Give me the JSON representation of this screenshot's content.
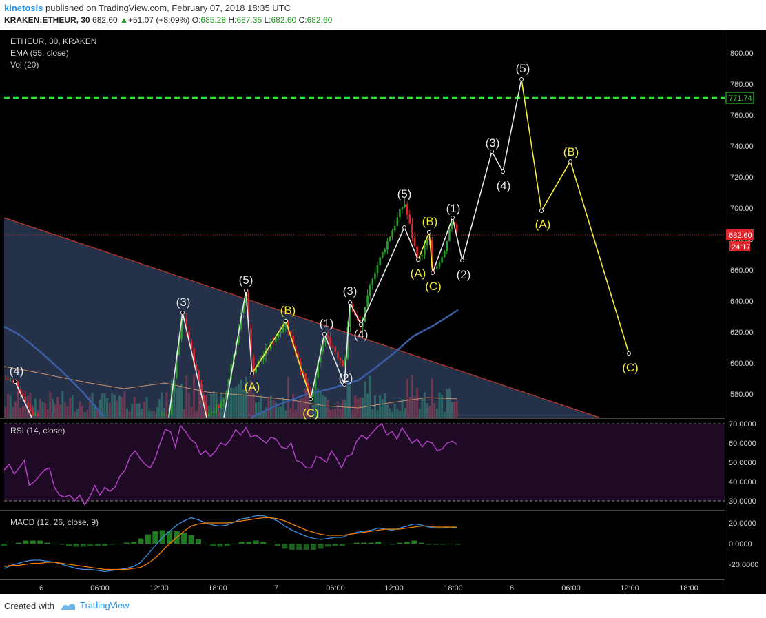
{
  "header": {
    "username": "kinetosis",
    "published": "published on TradingView.com, February 07, 2018 18:35 UTC",
    "symbol_line": "KRAKEN:ETHEUR, 30",
    "price": "682.60",
    "change": "+51.07 (+8.09%)",
    "o_label": "O:",
    "o_val": "685.28",
    "h_label": "H:",
    "h_val": "687.35",
    "l_label": "L:",
    "l_val": "682.60",
    "c_label": "C:",
    "c_val": "682.60",
    "up_color": "#1f9d1f"
  },
  "legend": {
    "title": "ETHEUR, 30, KRAKEN",
    "ema": "EMA (55, close)",
    "vol": "Vol (20)"
  },
  "price_axis": [
    "800.00",
    "780.00",
    "760.00",
    "740.00",
    "720.00",
    "700.00",
    "680.00",
    "660.00",
    "640.00",
    "620.00",
    "600.00",
    "580.00"
  ],
  "resistance_label": "771.74",
  "current_price_label": "682.60",
  "countdown_label": "24:17",
  "rsi": {
    "title": "RSI (14, close)",
    "axis": [
      "70.0000",
      "60.0000",
      "50.0000",
      "40.0000",
      "30.0000"
    ],
    "values": [
      46,
      49,
      44,
      47,
      51,
      38,
      40,
      43,
      46,
      47,
      37,
      33,
      32,
      33,
      30,
      33,
      28,
      32,
      38,
      33,
      37,
      35,
      37,
      43,
      46,
      53,
      56,
      52,
      49,
      47,
      52,
      60,
      67,
      66,
      58,
      69,
      66,
      62,
      60,
      54,
      56,
      53,
      56,
      60,
      59,
      62,
      67,
      64,
      68,
      63,
      64,
      62,
      60,
      63,
      62,
      58,
      57,
      60,
      51,
      50,
      47,
      47,
      53,
      52,
      50,
      56,
      52,
      47,
      53,
      54,
      61,
      64,
      62,
      65,
      68,
      70,
      64,
      66,
      62,
      68,
      64,
      60,
      62,
      58,
      61,
      60,
      56,
      57,
      60,
      61,
      59
    ]
  },
  "macd": {
    "title": "MACD (12, 26, close, 9)",
    "axis": [
      "20.0000",
      "0.0000",
      "-20.0000"
    ],
    "macd_line": [
      -24,
      -21,
      -19,
      -17,
      -16,
      -16,
      -17,
      -18,
      -20,
      -22,
      -24,
      -25,
      -25,
      -26,
      -27,
      -26,
      -25,
      -24,
      -22,
      -18,
      -10,
      -2,
      6,
      12,
      18,
      22,
      25,
      23,
      20,
      18,
      17,
      18,
      21,
      24,
      25,
      27,
      27,
      25,
      22,
      17,
      13,
      10,
      7,
      5,
      4,
      5,
      6,
      6,
      9,
      11,
      12,
      13,
      15,
      14,
      13,
      15,
      17,
      19,
      18,
      16,
      15,
      15,
      16,
      15
    ],
    "signal_line": [
      -22,
      -21,
      -21,
      -20,
      -19,
      -19,
      -18,
      -18,
      -19,
      -20,
      -21,
      -22,
      -23,
      -24,
      -25,
      -25,
      -25,
      -25,
      -24,
      -23,
      -19,
      -14,
      -7,
      0,
      6,
      12,
      17,
      19,
      20,
      20,
      20,
      20,
      21,
      22,
      23,
      24,
      25,
      25,
      24,
      22,
      19,
      16,
      13,
      11,
      9,
      8,
      8,
      8,
      9,
      10,
      11,
      12,
      13,
      14,
      14,
      14,
      15,
      16,
      17,
      17,
      16,
      16,
      16,
      16
    ],
    "histogram": [
      -2,
      0,
      1,
      3,
      3,
      3,
      1,
      0,
      -1,
      -2,
      -3,
      -3,
      -2,
      -2,
      -2,
      -1,
      0,
      1,
      2,
      5,
      9,
      12,
      13,
      12,
      12,
      10,
      8,
      4,
      0,
      -2,
      -3,
      -2,
      0,
      2,
      2,
      3,
      2,
      0,
      -2,
      -5,
      -6,
      -6,
      -6,
      -6,
      -5,
      -3,
      -2,
      -2,
      0,
      1,
      1,
      1,
      2,
      0,
      -1,
      1,
      2,
      3,
      1,
      -1,
      -1,
      -1,
      0,
      -1
    ]
  },
  "time_axis": [
    "6",
    "06:00",
    "12:00",
    "18:00",
    "7",
    "06:00",
    "12:00",
    "18:00",
    "8",
    "06:00",
    "12:00",
    "18:00"
  ],
  "wave_labels": {
    "w4_left": "(4)",
    "w3": "(3)",
    "w5": "(5)",
    "A1": "(A)",
    "B1": "(B)",
    "C1": "(C)",
    "i1": "(1)",
    "i2": "(2)",
    "i3": "(3)",
    "i4": "(4)",
    "i5": "(5)",
    "A2": "(A)",
    "B2": "(B)",
    "C2": "(C)",
    "j1": "(1)",
    "j2": "(2)",
    "j3": "(3)",
    "j4": "(4)",
    "j5": "(5)",
    "A3": "(A)",
    "B3": "(B)",
    "C3": "(C)"
  },
  "footer": {
    "created": "Created with",
    "brand": "TradingView"
  },
  "colors": {
    "background": "#000000",
    "up_candle": "#2ca02c",
    "down_candle": "#e0262b",
    "ema": "#3a5fa8",
    "rsi": "#b33fc4",
    "macd": "#3a8ee6",
    "signal": "#f57c00",
    "wave_white": "#e8e8e8",
    "wave_yellow": "#f5ec3b",
    "resistance": "#2ee62e",
    "triangle_fill": "#2b3a55",
    "triangle_edge": "#c0392b"
  }
}
